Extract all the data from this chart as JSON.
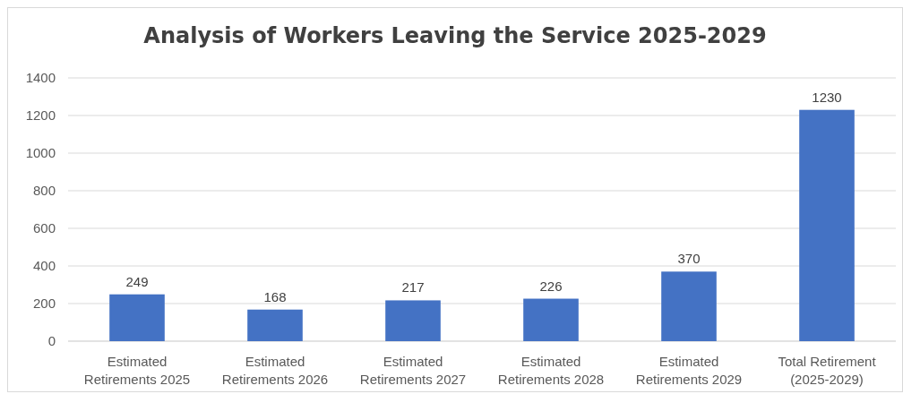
{
  "chart_data": {
    "type": "bar",
    "title": "Analysis of Workers Leaving the Service 2025-2029",
    "categories": [
      "Estimated Retirements 2025",
      "Estimated Retirements 2026",
      "Estimated Retirements 2027",
      "Estimated Retirements 2028",
      "Estimated Retirements 2029",
      "Total Retirement (2025-2029)"
    ],
    "values": [
      249,
      168,
      217,
      226,
      370,
      1230
    ],
    "color": "#4472c4",
    "ylim": [
      0,
      1400
    ],
    "yticks": [
      0,
      200,
      400,
      600,
      800,
      1000,
      1200,
      1400
    ],
    "grid": "y",
    "data_labels": true
  }
}
